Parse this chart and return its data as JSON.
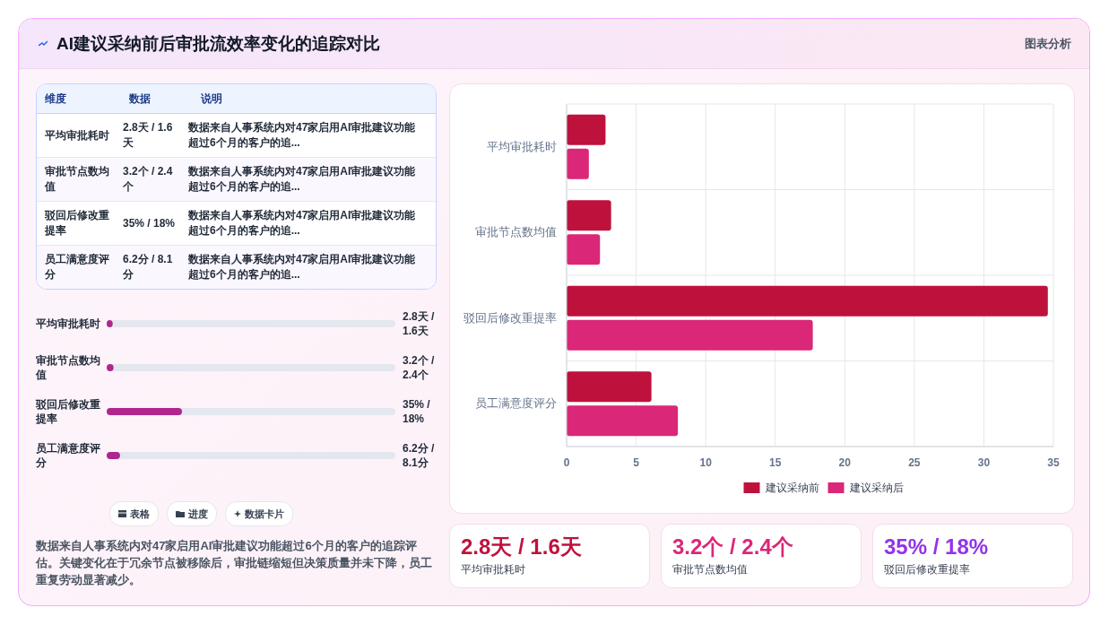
{
  "chart_data": [
    {
      "type": "other",
      "title": "AI建议采纳前后审批流效率变化的追踪对比",
      "annotations": [
        "图表分析"
      ]
    },
    {
      "type": "bar",
      "orientation": "horizontal",
      "categories": [
        "平均审批耗时",
        "审批节点数均值",
        "驳回后修改重提率",
        "员工满意度评分"
      ],
      "series": [
        {
          "name": "建议采纳前",
          "color": "#be123c",
          "values": [
            2.8,
            3.2,
            34.6,
            6.1
          ]
        },
        {
          "name": "建议采纳后",
          "color": "#db2777",
          "values": [
            1.6,
            2.4,
            17.7,
            8.0
          ]
        }
      ],
      "xlim": [
        0,
        35
      ],
      "xticks": [
        0,
        5,
        10,
        15,
        20,
        25,
        30,
        35
      ],
      "grid": true,
      "legend": "bottom"
    },
    {
      "type": "other",
      "categories": [
        "维度",
        "数据",
        "说明"
      ],
      "annotations": [
        "平均审批耗时",
        "2.8天 / 1.6天",
        "数据来自人事系统内对47家启用AI审批建议功能超过6个月的客户的追...",
        "审批节点数均值",
        "3.2个 / 2.4个",
        "数据来自人事系统内对47家启用AI审批建议功能超过6个月的客户的追...",
        "驳回后修改重提率",
        "35% / 18%",
        "数据来自人事系统内对47家启用AI审批建议功能超过6个月的客户的追...",
        "员工满意度评分",
        "6.2分 / 8.1分",
        "数据来自人事系统内对47家启用AI审批建议功能超过6个月的客户的追..."
      ]
    },
    {
      "type": "bar",
      "orientation": "horizontal",
      "categories": [
        "平均审批耗时",
        "审批节点数均值",
        "驳回后修改重提率",
        "员工满意度评分"
      ],
      "values": [
        2.8,
        3.2,
        35,
        6.2
      ],
      "value_labels": [
        "2.8天 / 1.6天",
        "3.2个 / 2.4个",
        "35% / 18%",
        "6.2分 / 8.1分"
      ],
      "color": "#b0268f"
    },
    {
      "type": "other",
      "categories": [
        "表格",
        "进度",
        "数据卡片"
      ],
      "annotations": [
        "数据来自人事系统内对47家启用AI审批建议功能超过6个月的客户的追踪评估。关键变化在于冗余节点被移除后，审批链缩短但决策质量并未下降，员工重复劳动显著减少。"
      ]
    },
    {
      "type": "other",
      "categories": [
        "平均审批耗时",
        "审批节点数均值",
        "驳回后修改重提率"
      ],
      "value_labels": [
        "2.8天 / 1.6天",
        "3.2个 / 2.4个",
        "35% / 18%"
      ]
    }
  ]
}
